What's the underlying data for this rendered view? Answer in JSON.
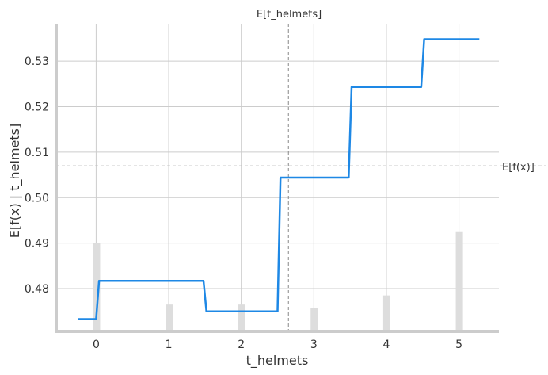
{
  "chart_data": {
    "type": "line",
    "title": "",
    "xlabel": "t_helmets",
    "ylabel": "E[f(x) | t_helmets]",
    "xlim": [
      -0.55,
      5.55
    ],
    "ylim": [
      0.4706,
      0.5382
    ],
    "x_ticks": [
      0,
      1,
      2,
      3,
      4,
      5
    ],
    "y_ticks": [
      0.48,
      0.49,
      0.5,
      0.51,
      0.52,
      0.53
    ],
    "x_tick_labels": [
      "0",
      "1",
      "2",
      "3",
      "4",
      "5"
    ],
    "y_tick_labels": [
      "0.48",
      "0.49",
      "0.50",
      "0.51",
      "0.52",
      "0.53"
    ],
    "grid": true,
    "series": [
      {
        "color": "#1e88e5",
        "x": [
          -0.25,
          0.0,
          0.04,
          1.48,
          1.52,
          2.5,
          2.54,
          3.48,
          3.52,
          4.48,
          4.52,
          5.28
        ],
        "y": [
          0.4733,
          0.4733,
          0.4817,
          0.4817,
          0.475,
          0.475,
          0.5044,
          0.5044,
          0.5243,
          0.5243,
          0.5348,
          0.5348
        ]
      }
    ],
    "histogram": {
      "color": "#dddddd",
      "x": [
        0,
        1,
        2,
        3,
        4,
        5
      ],
      "heights": [
        0.0194,
        0.0059,
        0.0059,
        0.0052,
        0.0079,
        0.022
      ]
    },
    "reference_lines": {
      "vertical": {
        "x": 2.65,
        "label": "E[t_helmets]"
      },
      "horizontal": {
        "y": 0.507,
        "label": "E[f(x)]"
      }
    }
  }
}
